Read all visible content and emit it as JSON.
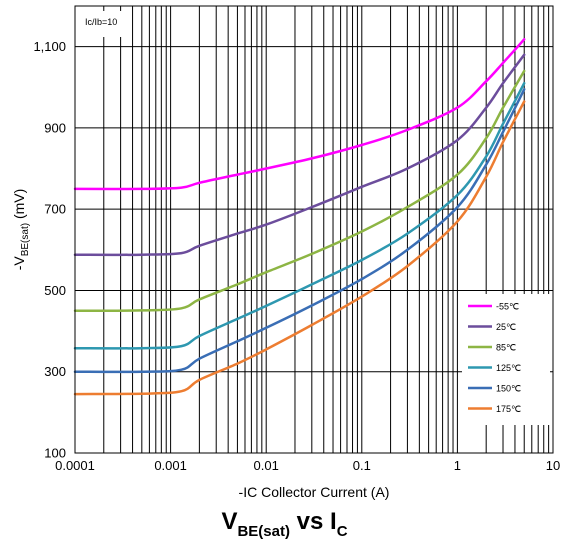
{
  "chart_data": {
    "type": "line",
    "title": {
      "main": "V",
      "main_sub": "BE(sat)",
      "mid": " vs I",
      "mid_sub": "C"
    },
    "xlabel": "-IC Collector Current (A)",
    "ylabel": {
      "pre": "-V",
      "sub": "BE(sat)",
      "post": " (mV)"
    },
    "x_scale": "log",
    "xlim": [
      0.0001,
      10
    ],
    "ylim": [
      100,
      1200
    ],
    "x_ticks": [
      {
        "v": 0.0001,
        "label": "0.0001"
      },
      {
        "v": 0.001,
        "label": "0.001"
      },
      {
        "v": 0.01,
        "label": "0.01"
      },
      {
        "v": 0.1,
        "label": "0.1"
      },
      {
        "v": 1,
        "label": "1"
      },
      {
        "v": 10,
        "label": "10"
      }
    ],
    "y_ticks": [
      {
        "v": 100,
        "label": "100"
      },
      {
        "v": 300,
        "label": "300"
      },
      {
        "v": 500,
        "label": "500"
      },
      {
        "v": 700,
        "label": "700"
      },
      {
        "v": 900,
        "label": "900"
      },
      {
        "v": 1100,
        "label": "1,100"
      }
    ],
    "condition_label": "Ic/Ib=10",
    "grid": true,
    "legend_position": "bottom-right",
    "series": [
      {
        "name": "-55℃",
        "color": "#ff00ff",
        "x": [
          0.0001,
          0.0005,
          0.0013,
          0.002,
          0.005,
          0.01,
          0.03,
          0.1,
          0.3,
          1,
          2,
          3,
          5
        ],
        "y": [
          750,
          750,
          753,
          765,
          785,
          800,
          825,
          858,
          895,
          950,
          1015,
          1060,
          1118
        ]
      },
      {
        "name": "25℃",
        "color": "#6c4d9c",
        "x": [
          0.0001,
          0.0005,
          0.0013,
          0.002,
          0.005,
          0.01,
          0.03,
          0.1,
          0.3,
          1,
          2,
          3,
          5
        ],
        "y": [
          588,
          588,
          592,
          610,
          640,
          662,
          705,
          755,
          800,
          870,
          950,
          1010,
          1080
        ]
      },
      {
        "name": "85℃",
        "color": "#8db544",
        "x": [
          0.0001,
          0.0005,
          0.0013,
          0.002,
          0.005,
          0.01,
          0.03,
          0.1,
          0.3,
          1,
          2,
          3,
          5
        ],
        "y": [
          450,
          451,
          456,
          478,
          515,
          545,
          590,
          645,
          705,
          785,
          875,
          950,
          1040
        ]
      },
      {
        "name": "125℃",
        "color": "#2e98b0",
        "x": [
          0.0001,
          0.0005,
          0.0013,
          0.002,
          0.005,
          0.01,
          0.03,
          0.1,
          0.3,
          1,
          2,
          3,
          5
        ],
        "y": [
          358,
          358,
          363,
          388,
          430,
          462,
          515,
          575,
          640,
          735,
          830,
          910,
          1010
        ]
      },
      {
        "name": "150℃",
        "color": "#3a6eb5",
        "x": [
          0.0001,
          0.0005,
          0.0013,
          0.002,
          0.005,
          0.01,
          0.03,
          0.1,
          0.3,
          1,
          2,
          3,
          5
        ],
        "y": [
          300,
          300,
          305,
          332,
          375,
          408,
          463,
          528,
          600,
          705,
          810,
          890,
          995
        ]
      },
      {
        "name": "175℃",
        "color": "#ed7d31",
        "x": [
          0.0001,
          0.0005,
          0.0013,
          0.002,
          0.005,
          0.01,
          0.03,
          0.1,
          0.3,
          1,
          2,
          3,
          5
        ],
        "y": [
          245,
          246,
          252,
          280,
          320,
          355,
          415,
          485,
          560,
          670,
          780,
          865,
          965
        ]
      }
    ]
  }
}
